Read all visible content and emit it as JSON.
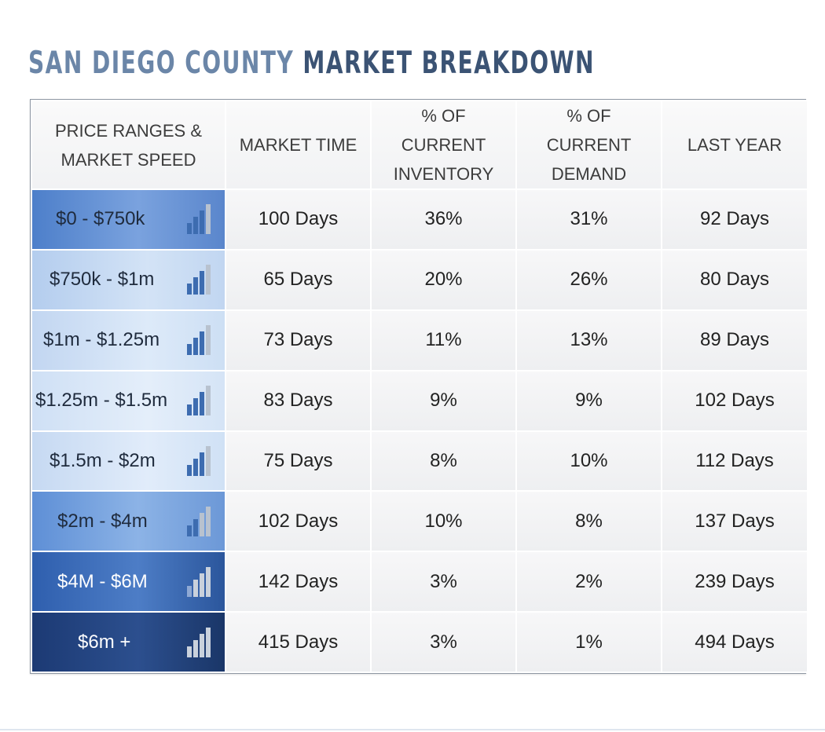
{
  "title": {
    "part1": "SAN DIEGO COUNTY",
    "part2": "MARKET BREAKDOWN"
  },
  "headers": [
    [
      "PRICE RANGES &",
      "MARKET SPEED"
    ],
    [
      "MARKET TIME"
    ],
    [
      "% OF",
      "CURRENT",
      "INVENTORY"
    ],
    [
      "% OF",
      "CURRENT",
      "DEMAND"
    ],
    [
      "LAST YEAR"
    ]
  ],
  "rows": [
    {
      "range": "$0 - $750k",
      "speed_bars_filled": 3,
      "market_time": "100 Days",
      "inventory": "36%",
      "demand": "31%",
      "last_year": "92 Days"
    },
    {
      "range": "$750k - $1m",
      "speed_bars_filled": 3,
      "market_time": "65 Days",
      "inventory": "20%",
      "demand": "26%",
      "last_year": "80 Days"
    },
    {
      "range": "$1m - $1.25m",
      "speed_bars_filled": 3,
      "market_time": "73 Days",
      "inventory": "11%",
      "demand": "13%",
      "last_year": "89 Days"
    },
    {
      "range": "$1.25m - $1.5m",
      "speed_bars_filled": 3,
      "market_time": "83 Days",
      "inventory": "9%",
      "demand": "9%",
      "last_year": "102 Days"
    },
    {
      "range": "$1.5m - $2m",
      "speed_bars_filled": 3,
      "market_time": "75 Days",
      "inventory": "8%",
      "demand": "10%",
      "last_year": "112 Days"
    },
    {
      "range": "$2m - $4m",
      "speed_bars_filled": 2,
      "market_time": "102 Days",
      "inventory": "10%",
      "demand": "8%",
      "last_year": "137 Days"
    },
    {
      "range": "$4M - $6M",
      "speed_bars_filled": 1,
      "market_time": "142 Days",
      "inventory": "3%",
      "demand": "2%",
      "last_year": "239 Days"
    },
    {
      "range": "$6m +",
      "speed_bars_filled": 0,
      "market_time": "415 Days",
      "inventory": "3%",
      "demand": "1%",
      "last_year": "494 Days"
    }
  ],
  "colors": {
    "title_light": "#6b86a8",
    "title_dark": "#3b5374",
    "bar_filled": "#3d6cb0",
    "bar_empty": "#b8c2cf"
  }
}
